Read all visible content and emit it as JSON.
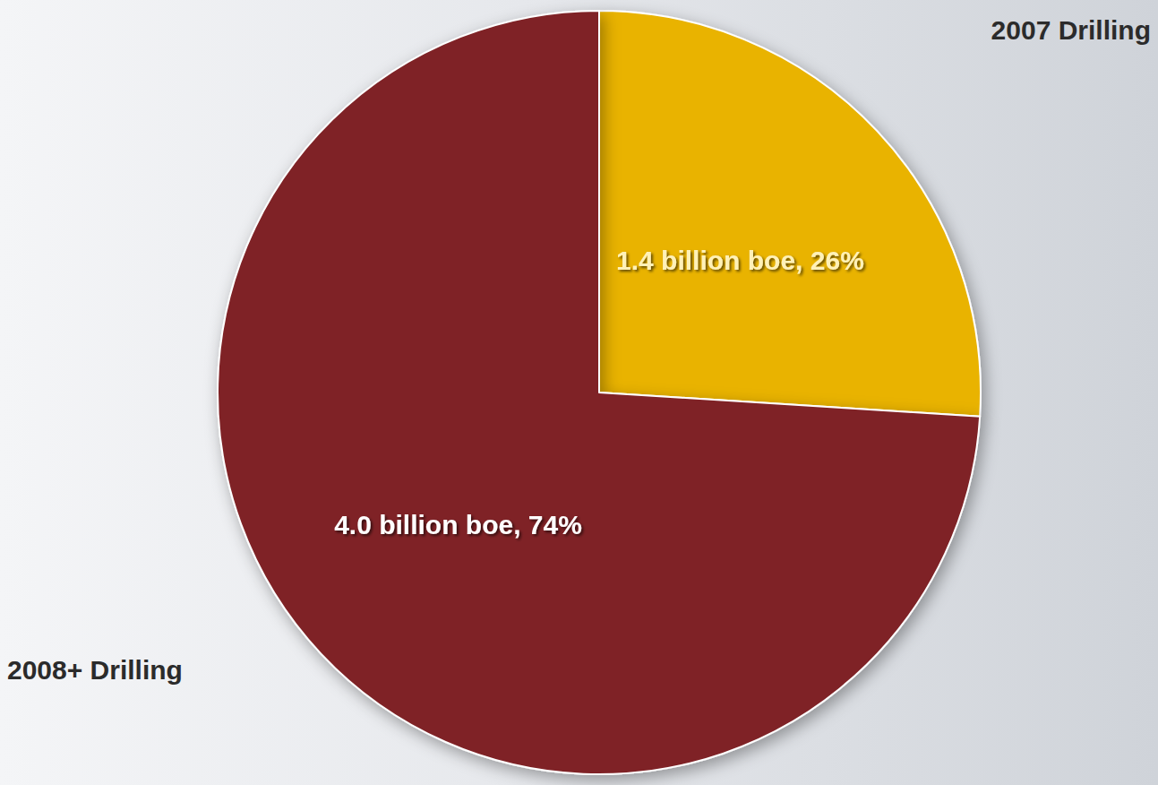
{
  "chart_data": {
    "type": "pie",
    "categories": [
      "2007 Drilling",
      "2008+ Drilling"
    ],
    "values": [
      26,
      74
    ],
    "value_labels": [
      "1.4 billion boe, 26%",
      "4.0 billion boe, 74%"
    ],
    "colors": [
      "#E9B300",
      "#7F2427"
    ],
    "data_labels": true
  }
}
